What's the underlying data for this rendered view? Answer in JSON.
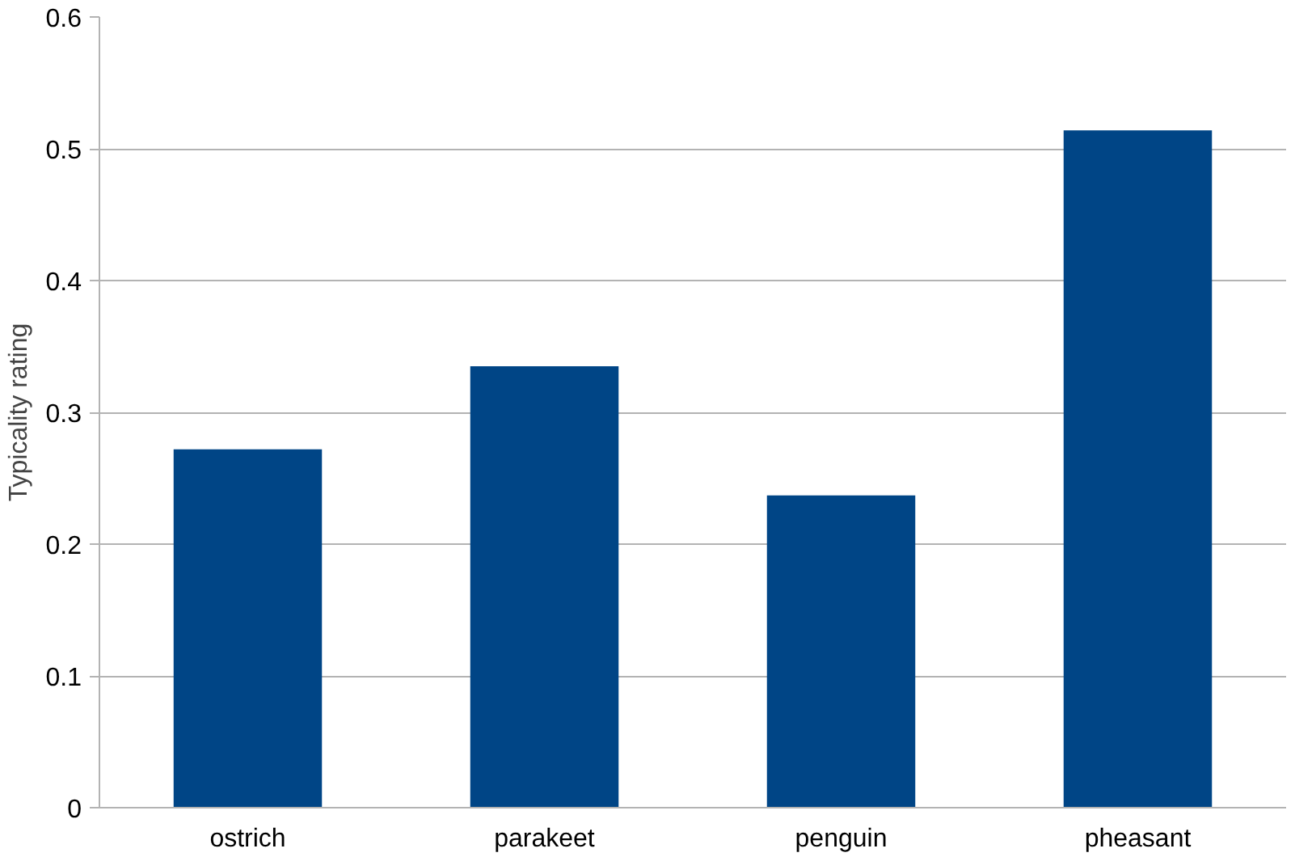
{
  "chart_data": {
    "type": "bar",
    "ylabel": "Typicality rating",
    "categories": [
      "ostrich",
      "parakeet",
      "penguin",
      "pheasant"
    ],
    "values": [
      0.272,
      0.335,
      0.237,
      0.514
    ],
    "color": "#004586",
    "ylim": [
      0,
      0.6
    ],
    "yticks": [
      0,
      0.1,
      0.2,
      0.3,
      0.4,
      0.5,
      0.6
    ],
    "grid": "y"
  }
}
